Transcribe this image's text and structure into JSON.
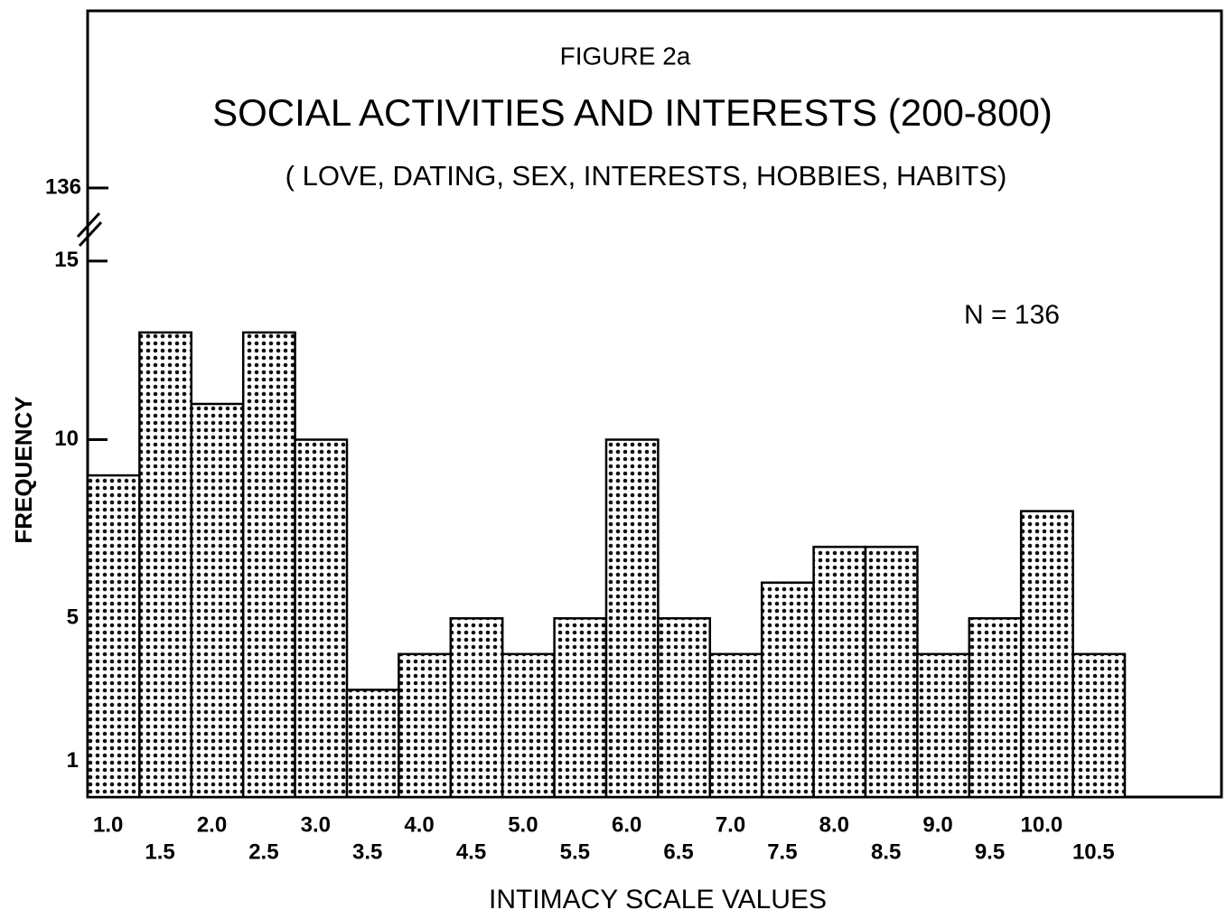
{
  "chart_data": {
    "type": "bar",
    "title": "FIGURE 2a",
    "subtitle": "SOCIAL ACTIVITIES AND INTERESTS (200-800)",
    "subtitle2": "( LOVE, DATING, SEX, INTERESTS, HOBBIES, HABITS)",
    "annotation": "N = 136",
    "ylabel": "FREQUENCY",
    "xlabel": "INTIMACY SCALE VALUES",
    "categories": [
      "1.0",
      "1.5",
      "2.0",
      "2.5",
      "3.0",
      "3.5",
      "4.0",
      "4.5",
      "5.0",
      "5.5",
      "6.0",
      "6.5",
      "7.0",
      "7.5",
      "8.0",
      "8.5",
      "9.0",
      "9.5",
      "10.0",
      "10.5"
    ],
    "values": [
      9,
      13,
      11,
      13,
      10,
      3,
      4,
      5,
      4,
      5,
      10,
      5,
      4,
      6,
      7,
      7,
      4,
      5,
      8,
      4
    ],
    "color": "#000000",
    "ylim": [
      0,
      22
    ],
    "yticks": [
      1,
      5,
      10,
      15
    ],
    "ybreak_tick": 136,
    "grid": false
  }
}
